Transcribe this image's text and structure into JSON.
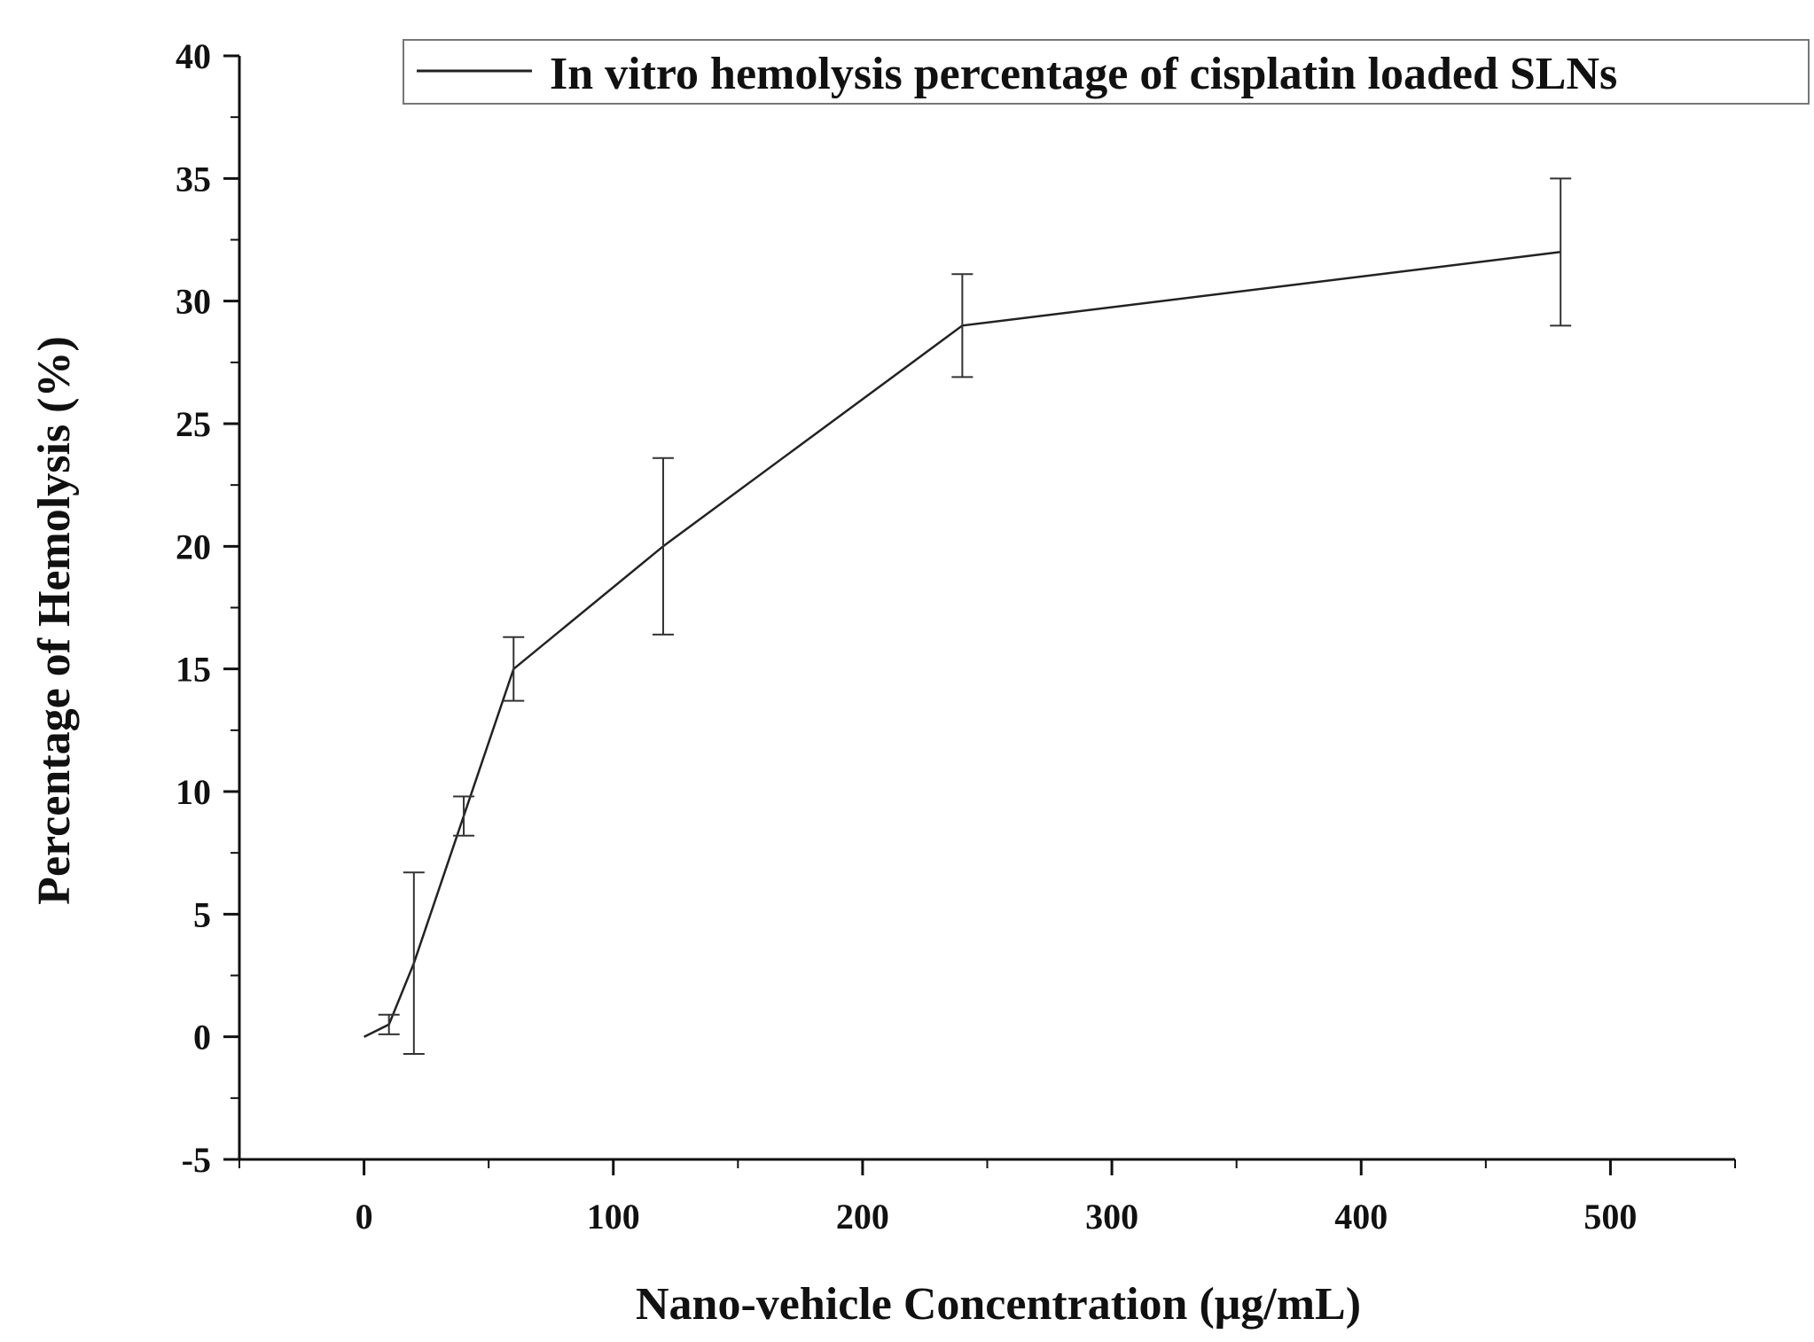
{
  "chart_data": {
    "type": "line",
    "title": "",
    "xlabel": "Nano-vehicle Concentration (μg/mL)",
    "ylabel": "Percentage of Hemolysis (%)",
    "xlim": [
      -50,
      550
    ],
    "ylim": [
      -5,
      40
    ],
    "x_ticks": [
      0,
      100,
      200,
      300,
      400,
      500
    ],
    "x_tick_labels": [
      "0",
      "100",
      "200",
      "300",
      "400",
      "500"
    ],
    "y_ticks": [
      -5,
      0,
      5,
      10,
      15,
      20,
      25,
      30,
      35,
      40
    ],
    "y_tick_labels": [
      "-5",
      "0",
      "5",
      "10",
      "15",
      "20",
      "25",
      "30",
      "35",
      "40"
    ],
    "grid": false,
    "legend_position": "top-right",
    "series": [
      {
        "name": "In vitro hemolysis percentage of cisplatin loaded SLNs",
        "color": "#222222",
        "x": [
          0,
          10,
          20,
          40,
          60,
          120,
          240,
          480
        ],
        "y": [
          0,
          0.5,
          3.0,
          9.0,
          15.0,
          20.0,
          29.0,
          32.0
        ],
        "error": [
          0,
          0.4,
          3.7,
          0.8,
          1.3,
          3.6,
          2.1,
          3.0
        ]
      }
    ]
  }
}
